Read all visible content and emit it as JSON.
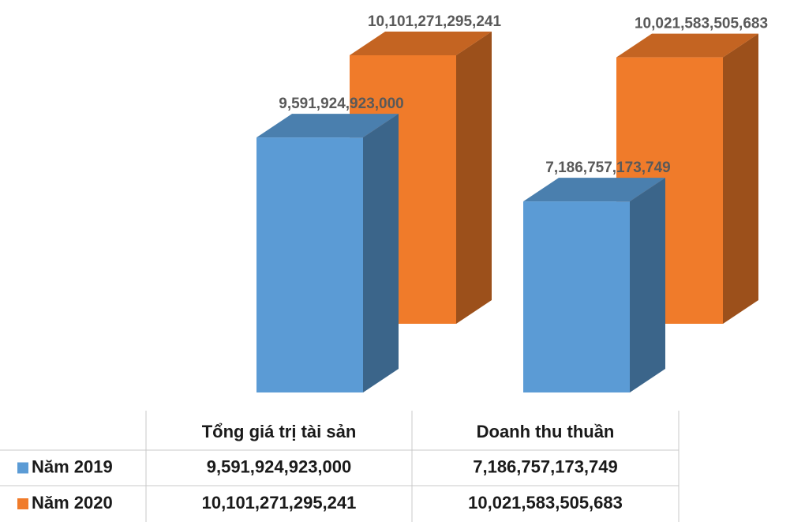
{
  "chart_data": {
    "type": "bar3d",
    "categories": [
      "Tổng giá trị tài sản",
      "Doanh thu thuần"
    ],
    "series": [
      {
        "name": "Năm 2019",
        "color": "#5b9bd5",
        "values": [
          9591924923000,
          7186757173749
        ],
        "value_labels": [
          "9,591,924,923,000",
          "7,186,757,173,749"
        ]
      },
      {
        "name": "Năm 2020",
        "color": "#f07b2a",
        "values": [
          10101271295241,
          10021583505683
        ],
        "value_labels": [
          "10,101,271,295,241",
          "10,021,583,505,683"
        ]
      }
    ]
  }
}
